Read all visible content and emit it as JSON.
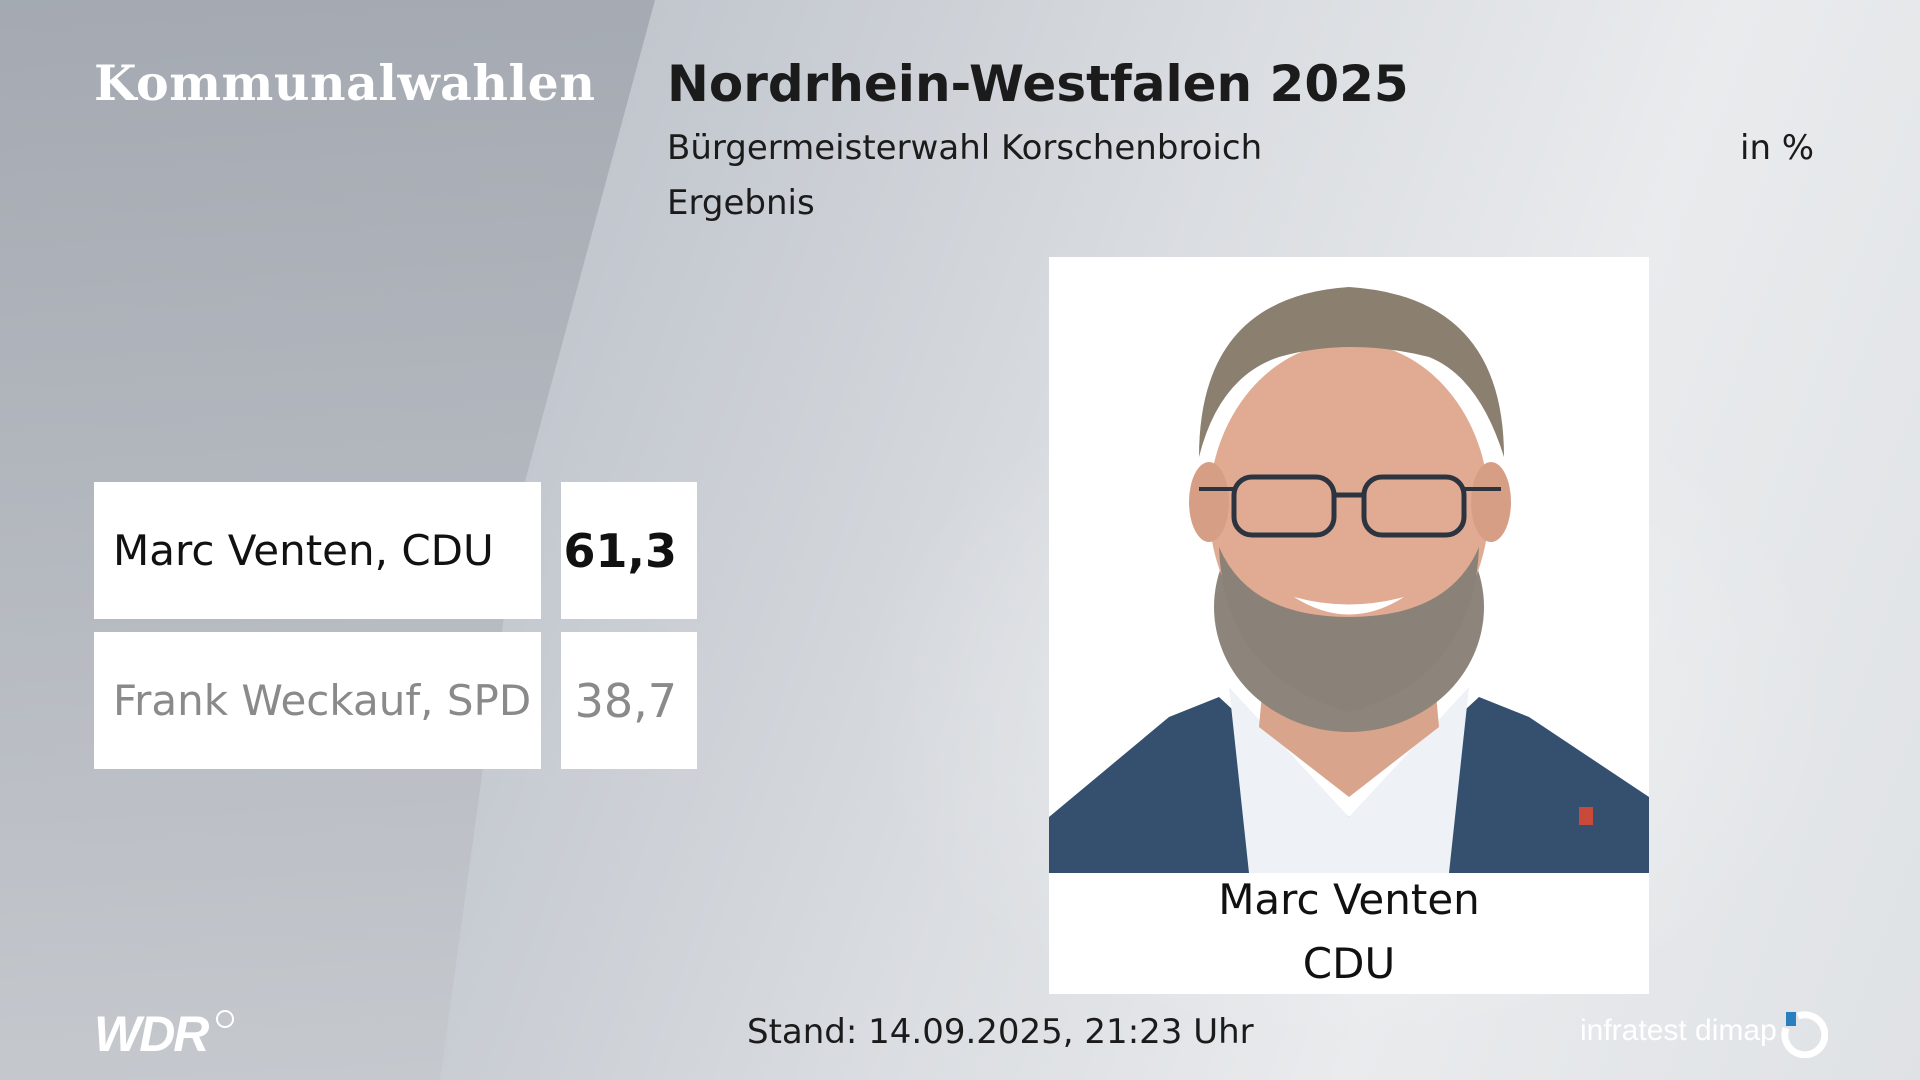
{
  "header": {
    "section": "Kommunalwahlen",
    "title": "Nordrhein-Westfalen 2025",
    "subtitle": "Bürgermeisterwahl Korschenbroich",
    "unit": "in %",
    "result_label": "Ergebnis"
  },
  "results": [
    {
      "name": "Marc Venten, CDU",
      "value": "61,3"
    },
    {
      "name": "Frank Weckauf, SPD",
      "value": "38,7"
    }
  ],
  "winner": {
    "name": "Marc Venten",
    "party": "CDU"
  },
  "footer": {
    "logo": "WDR",
    "stand": "Stand: 14.09.2025, 21:23 Uhr",
    "source": "infratest dimap"
  },
  "colors": {
    "winner_text": "#111111",
    "loser_text": "#8a8a8a",
    "box": "#ffffff"
  }
}
